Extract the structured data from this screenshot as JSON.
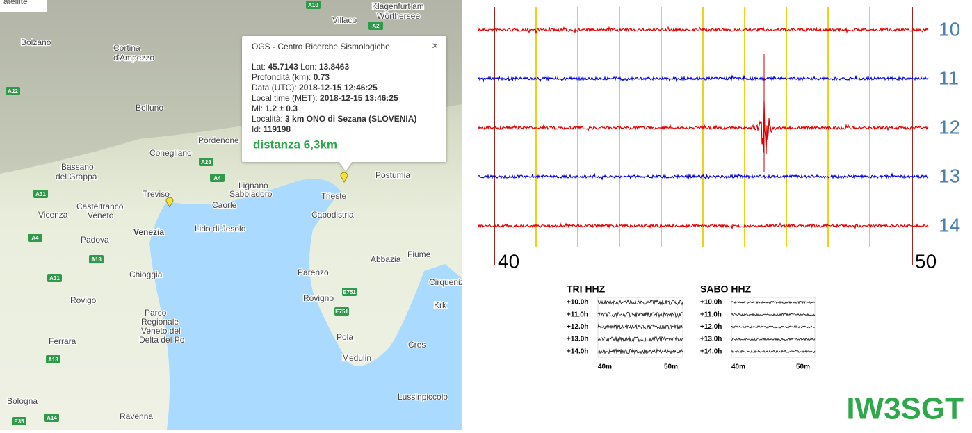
{
  "map": {
    "corner_label": "atellite",
    "places": [
      "Bolzano",
      "Cortina",
      "d'Ampezzo",
      "Belluno",
      "Conegliano",
      "Pordenone",
      "Bassano",
      "del Grappa",
      "Treviso",
      "Castelfranco",
      "Veneto",
      "Vicenza",
      "Venezia",
      "Padova",
      "Lido di Jesolo",
      "Lignano",
      "Sabbiadoro",
      "Caorle",
      "Trieste",
      "Capodistria",
      "Postumia",
      "Fiume",
      "Abbazia",
      "Parenzo",
      "Rovigno",
      "Pola",
      "Medulin",
      "Cres",
      "Krk",
      "Chioggia",
      "Rovigo",
      "Parco",
      "Regionale",
      "Veneto del",
      "Delta del Po",
      "Ferrara",
      "Bologna",
      "Ravenna",
      "Lussinpiccolo",
      "Klagenfurt am",
      "Wörthersee",
      "Villaco",
      "Cirquenizza"
    ],
    "roads": [
      "A10",
      "A2",
      "A22",
      "A28",
      "A4",
      "A31",
      "A4",
      "A13",
      "A31",
      "A13",
      "E35",
      "A14",
      "E751",
      "E751"
    ]
  },
  "popup": {
    "title": "OGS - Centro Ricerche Sismologiche",
    "close": "×",
    "rows": [
      [
        "Lat: ",
        "45.7143",
        " Lon: ",
        "13.8463"
      ],
      [
        "Profondità (km): ",
        "0.73"
      ],
      [
        "Data (UTC): ",
        "2018-12-15 12:46:25"
      ],
      [
        "Local time (MET): ",
        "2018-12-15 13:46:25"
      ],
      [
        "Ml: ",
        "1.2 ± 0.3"
      ],
      [
        "Località: ",
        "3 km ONO di Sezana (SLOVENIA)"
      ],
      [
        "Id: ",
        "119198"
      ]
    ],
    "distance": "distanza 6,3km"
  },
  "seismogram": {
    "hour_labels": [
      "10",
      "11",
      "12",
      "13",
      "14"
    ],
    "minute_labels": [
      "40",
      "50"
    ]
  },
  "thumbnails": [
    {
      "title": "TRI HHZ",
      "rows": [
        "+10.0h",
        "+11.0h",
        "+12.0h",
        "+13.0h",
        "+14.0h"
      ],
      "axis": [
        "40m",
        "50m"
      ]
    },
    {
      "title": "SABO HHZ",
      "rows": [
        "+10.0h",
        "+11.0h",
        "+12.0h",
        "+13.0h",
        "+14.0h"
      ],
      "axis": [
        "40m",
        "50m"
      ]
    }
  ],
  "station": "IW3SGT"
}
